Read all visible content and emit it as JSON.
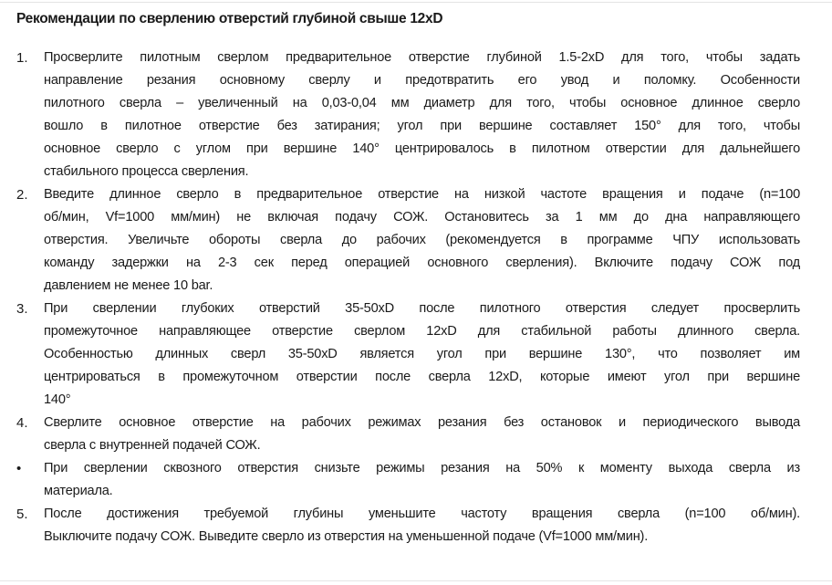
{
  "title": "Рекомендации по сверлению отверстий глубиной свыше 12xD",
  "items": [
    {
      "marker": "1.",
      "lines": [
        "Просверлите пилотным сверлом предварительное отверстие глубиной 1.5-2xD для того, чтобы задать",
        "направление резания основному сверлу и предотвратить его увод и поломку. Особенности",
        "пилотного сверла – увеличенный на 0,03-0,04 мм диаметр для того, чтобы основное длинное сверло",
        "вошло в пилотное отверстие без затирания; угол при вершине составляет 150° для того, чтобы",
        "основное сверло с углом при вершине 140° центрировалось в пилотном отверстии для дальнейшего",
        "стабильного процесса сверления."
      ]
    },
    {
      "marker": "2.",
      "lines": [
        "Введите длинное сверло в предварительное отверстие на низкой частоте вращения и подаче (n=100",
        "об/мин, Vf=1000 мм/мин) не включая подачу СОЖ. Остановитесь за 1 мм до дна направляющего",
        "отверстия. Увеличьте обороты сверла до рабочих (рекомендуется в программе ЧПУ использовать",
        "команду задержки на 2-3 сек перед операцией основного сверления). Включите подачу СОЖ под",
        "давлением не менее 10 bar."
      ]
    },
    {
      "marker": "3.",
      "lines": [
        "При сверлении глубоких отверстий 35-50xD после пилотного отверстия следует просверлить",
        "промежуточное направляющее отверстие сверлом 12xD для стабильной работы длинного сверла.",
        "Особенностью длинных сверл 35-50xD является угол при вершине 130°, что позволяет им",
        "центрироваться в промежуточном отверстии после сверла 12xD, которые имеют угол при вершине",
        "140°"
      ]
    },
    {
      "marker": "4.",
      "lines": [
        "Сверлите основное отверстие на рабочих режимах резания без остановок и периодического вывода",
        "сверла с внутренней подачей СОЖ."
      ]
    },
    {
      "marker": "•",
      "lines": [
        "При сверлении сквозного отверстия снизьте режимы резания на 50% к моменту выхода сверла из",
        "материала."
      ]
    },
    {
      "marker": "5.",
      "lines": [
        "После достижения требуемой глубины уменьшите частоту вращения сверла (n=100 об/мин).",
        "Выключите подачу СОЖ. Выведите сверло из отверстия на уменьшенной подаче (Vf=1000 мм/мин)."
      ]
    }
  ]
}
